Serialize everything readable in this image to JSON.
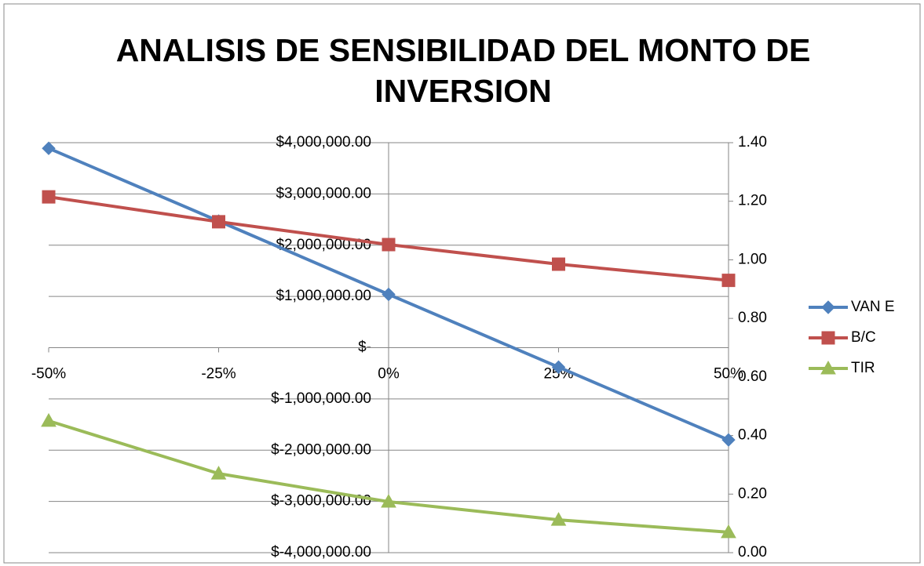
{
  "chart_data": {
    "type": "line",
    "title": "ANALISIS DE SENSIBILIDAD DEL MONTO DE INVERSION",
    "categories": [
      "-50%",
      "-25%",
      "0%",
      "25%",
      "50%"
    ],
    "series": [
      {
        "name": "VAN E",
        "color": "#4f81bd",
        "marker": "diamond",
        "values": [
          3890000,
          2470000,
          1040000,
          -380000,
          -1800000
        ]
      },
      {
        "name": "B/C",
        "color": "#c0504d",
        "marker": "square",
        "axis": "y2",
        "values": [
          1.215,
          1.13,
          1.052,
          0.985,
          0.93
        ]
      },
      {
        "name": "TIR",
        "color": "#9bbb59",
        "marker": "triangle",
        "axis": "y2",
        "values": [
          0.45,
          0.27,
          0.174,
          0.112,
          0.07
        ]
      }
    ],
    "ylim": [
      -4000000,
      4000000
    ],
    "yticks": [
      {
        "value": -4000000,
        "label": "$-4,000,000.00"
      },
      {
        "value": -3000000,
        "label": "$-3,000,000.00"
      },
      {
        "value": -2000000,
        "label": "$-2,000,000.00"
      },
      {
        "value": -1000000,
        "label": "$-1,000,000.00"
      },
      {
        "value": 0,
        "label": "$-"
      },
      {
        "value": 1000000,
        "label": "$1,000,000.00"
      },
      {
        "value": 2000000,
        "label": "$2,000,000.00"
      },
      {
        "value": 3000000,
        "label": "$3,000,000.00"
      },
      {
        "value": 4000000,
        "label": "$4,000,000.00"
      }
    ],
    "y2lim": [
      0,
      1.4
    ],
    "y2ticks": [
      {
        "value": 0,
        "label": "0.00"
      },
      {
        "value": 0.2,
        "label": "0.20"
      },
      {
        "value": 0.4,
        "label": "0.40"
      },
      {
        "value": 0.6,
        "label": "0.60"
      },
      {
        "value": 0.8,
        "label": "0.80"
      },
      {
        "value": 1.0,
        "label": "1.00"
      },
      {
        "value": 1.2,
        "label": "1.20"
      },
      {
        "value": 1.4,
        "label": "1.40"
      }
    ],
    "grid": true,
    "legend": "right"
  }
}
